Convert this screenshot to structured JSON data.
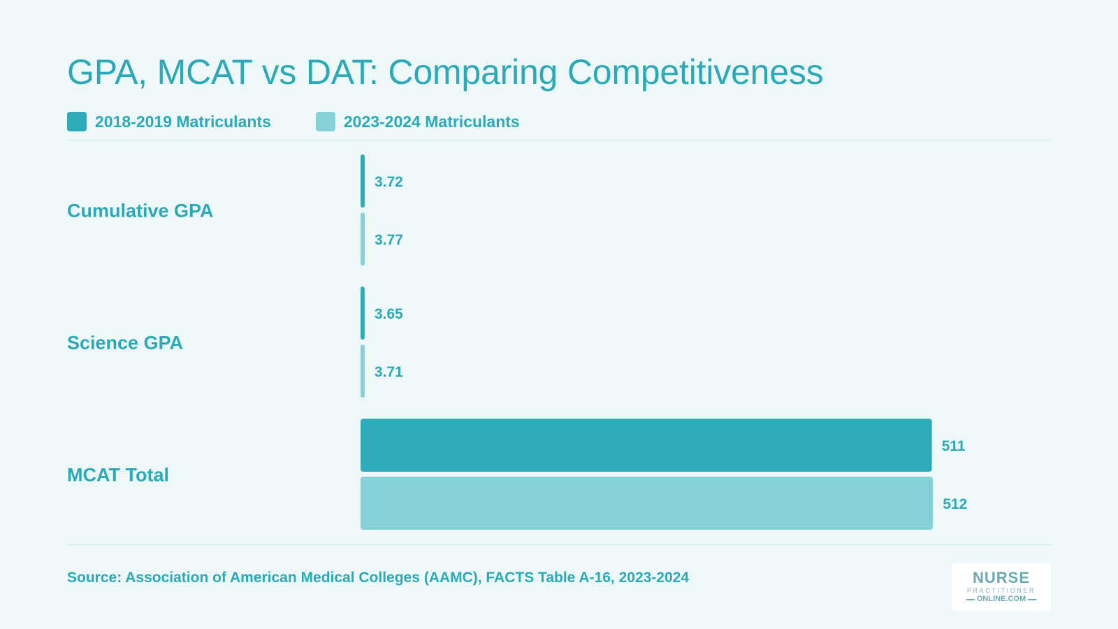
{
  "chart_data": {
    "type": "bar",
    "orientation": "horizontal",
    "title": "GPA, MCAT vs DAT: Comparing Competitiveness",
    "categories": [
      "Cumulative GPA",
      "Science GPA",
      "MCAT Total"
    ],
    "series": [
      {
        "name": "2018-2019 Matriculants",
        "color": "#2eacba",
        "values": [
          3.72,
          3.65,
          511
        ]
      },
      {
        "name": "2023-2024 Matriculants",
        "color": "#86d1d7",
        "values": [
          3.77,
          3.71,
          512
        ]
      }
    ],
    "value_labels": [
      [
        "3.72",
        "3.65",
        "511"
      ],
      [
        "3.77",
        "3.71",
        "512"
      ]
    ],
    "xlim": [
      0,
      630
    ],
    "legend_position": "top-left",
    "grid": false
  },
  "source": "Source: Association of American Medical Colleges (AAMC), FACTS Table A-16, 2023-2024",
  "logo": {
    "main": "NURSE",
    "sub": "PRACTITIONER",
    "domain": "ONLINE.COM"
  }
}
